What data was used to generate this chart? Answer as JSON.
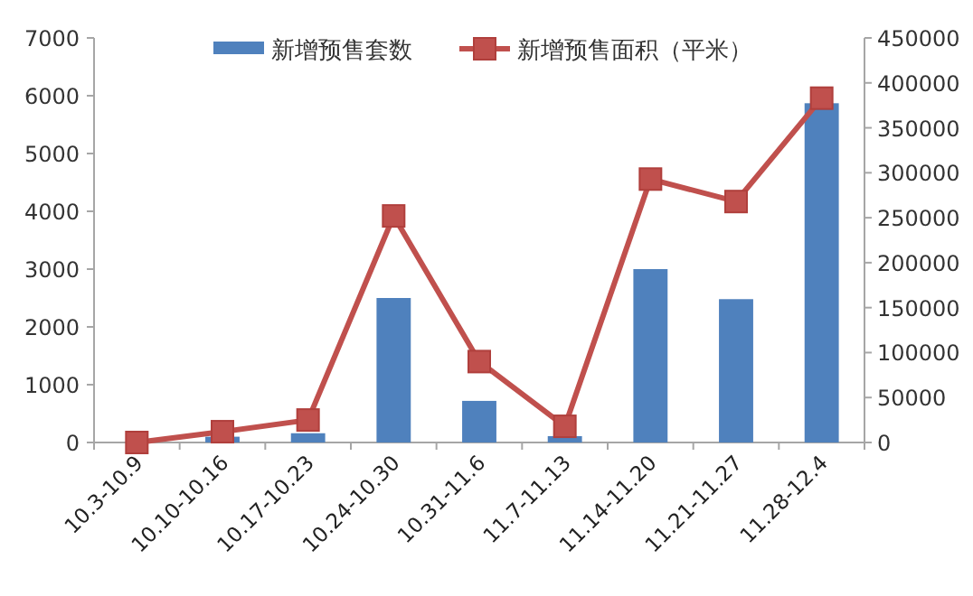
{
  "chart_data": {
    "type": "bar",
    "categories": [
      "10.3-10.9",
      "10.10-10.16",
      "10.17-10.23",
      "10.24-10.30",
      "10.31-11.6",
      "11.7-11.13",
      "11.14-11.20",
      "11.21-11.27",
      "11.28-12.4"
    ],
    "series": [
      {
        "name": "新增预售套数",
        "color": "#4f81bd",
        "values": [
          0,
          100,
          160,
          2500,
          720,
          110,
          3000,
          2480,
          5870
        ]
      },
      {
        "name": "新增预售面积（平米）",
        "type": "line",
        "axis": "y2",
        "color": "#c0504d",
        "marker": "square",
        "values": [
          0,
          12000,
          25000,
          252000,
          90000,
          18000,
          293000,
          268000,
          383000
        ]
      }
    ],
    "ylim": [
      0,
      7000
    ],
    "yticks": [
      0,
      1000,
      2000,
      3000,
      4000,
      5000,
      6000,
      7000
    ],
    "y2lim": [
      0,
      450000
    ],
    "y2ticks": [
      0,
      50000,
      100000,
      150000,
      200000,
      250000,
      300000,
      350000,
      400000,
      450000
    ],
    "legend": "top",
    "grid": false
  }
}
